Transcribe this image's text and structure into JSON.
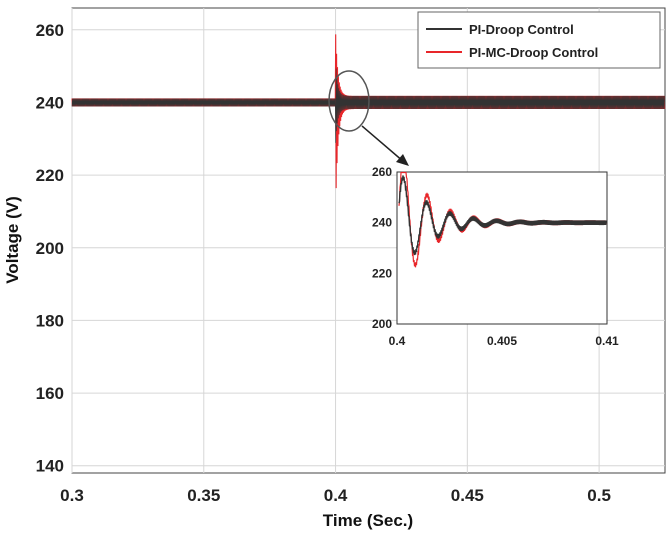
{
  "chart_data": {
    "type": "line",
    "xlabel": "Time (Sec.)",
    "ylabel": "Voltage (V)",
    "xlim": [
      0.3,
      0.525
    ],
    "ylim": [
      138,
      266
    ],
    "grid": true,
    "legend_position": "top-right",
    "xticks": [
      "0.3",
      "0.35",
      "0.4",
      "0.45",
      "0.5"
    ],
    "yticks": [
      "140",
      "160",
      "180",
      "200",
      "220",
      "240",
      "260"
    ],
    "series": [
      {
        "name": "PI-Droop Control",
        "color": "#333333",
        "x": [
          0.3,
          0.4,
          0.4005,
          0.401,
          0.4015,
          0.402,
          0.4025,
          0.403,
          0.404,
          0.405,
          0.407,
          0.41,
          0.525
        ],
        "y": [
          240,
          240,
          229,
          251,
          233,
          247,
          236,
          244,
          242,
          240.5,
          240,
          240,
          240
        ]
      },
      {
        "name": "PI-MC-Droop Control",
        "color": "#e8262a",
        "x": [
          0.3,
          0.4,
          0.4004,
          0.4009,
          0.4014,
          0.4019,
          0.4024,
          0.4029,
          0.4035,
          0.404,
          0.405,
          0.407,
          0.41,
          0.525
        ],
        "y": [
          240,
          240,
          207,
          262,
          220,
          249,
          228,
          246,
          234,
          243,
          240.5,
          240,
          240,
          240
        ]
      }
    ],
    "inset": {
      "xlim": [
        0.4,
        0.41
      ],
      "ylim": [
        200,
        260
      ],
      "xticks": [
        "0.4",
        "0.405",
        "0.41"
      ],
      "yticks": [
        "200",
        "220",
        "240",
        "260"
      ]
    }
  }
}
